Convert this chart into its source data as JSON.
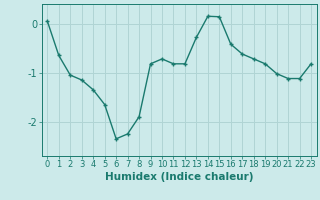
{
  "x": [
    0,
    1,
    2,
    3,
    4,
    5,
    6,
    7,
    8,
    9,
    10,
    11,
    12,
    13,
    14,
    15,
    16,
    17,
    18,
    19,
    20,
    21,
    22,
    23
  ],
  "y": [
    0.05,
    -0.65,
    -1.05,
    -1.15,
    -1.35,
    -1.65,
    -2.35,
    -2.25,
    -1.9,
    -0.82,
    -0.72,
    -0.82,
    -0.82,
    -0.28,
    0.15,
    0.14,
    -0.42,
    -0.62,
    -0.72,
    -0.82,
    -1.02,
    -1.12,
    -1.12,
    -0.82
  ],
  "line_color": "#1a7a6e",
  "marker": "+",
  "marker_size": 3,
  "marker_lw": 1.0,
  "line_width": 1.0,
  "background_color": "#cceaea",
  "grid_color": "#b0d4d4",
  "xlabel": "Humidex (Indice chaleur)",
  "xlim": [
    -0.5,
    23.5
  ],
  "ylim": [
    -2.7,
    0.4
  ],
  "yticks": [
    0,
    -1,
    -2
  ],
  "xticks": [
    0,
    1,
    2,
    3,
    4,
    5,
    6,
    7,
    8,
    9,
    10,
    11,
    12,
    13,
    14,
    15,
    16,
    17,
    18,
    19,
    20,
    21,
    22,
    23
  ],
  "tick_color": "#1a7a6e",
  "xlabel_fontsize": 7.5,
  "tick_fontsize": 6,
  "ytick_fontsize": 7
}
